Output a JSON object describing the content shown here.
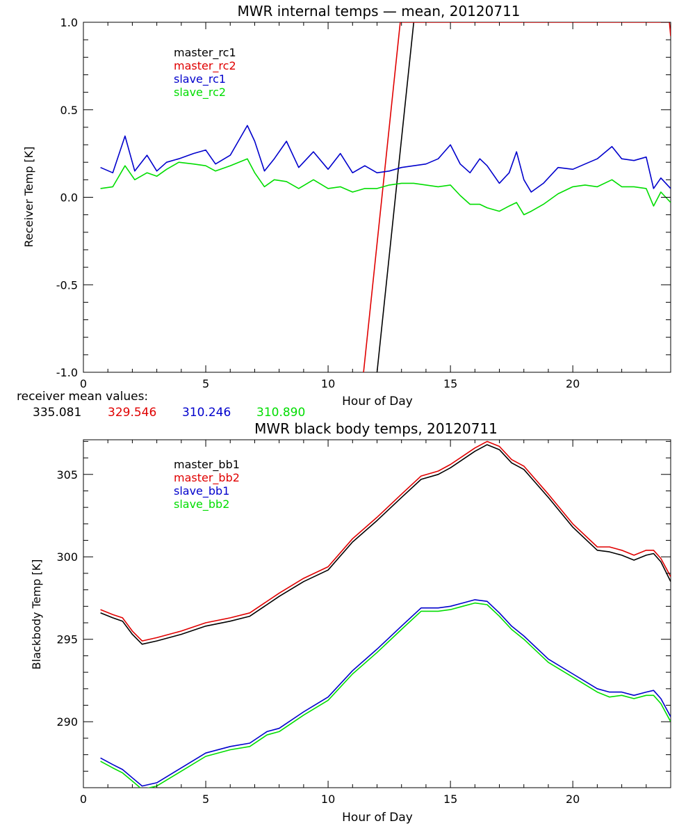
{
  "chart_data": [
    {
      "type": "line",
      "title": "MWR internal temps — mean, 20120711",
      "xlabel": "Hour of Day",
      "ylabel": "Receiver Temp [K]",
      "xlim": [
        0,
        24
      ],
      "ylim": [
        -1.0,
        1.0
      ],
      "xticks": [
        0,
        5,
        10,
        15,
        20
      ],
      "yticks": [
        -1.0,
        -0.5,
        0.0,
        0.5,
        1.0
      ],
      "ytick_labels": [
        "-1.0",
        "-0.5",
        "0.0",
        "0.5",
        "1.0"
      ],
      "grid": false,
      "legend_position": "top-left",
      "series": [
        {
          "name": "master_rc1",
          "color": "#000000",
          "x": [
            12.0,
            13.5
          ],
          "y": [
            -1.0,
            1.0
          ]
        },
        {
          "name": "master_rc2",
          "color": "#e00000",
          "x": [
            11.45,
            12.95,
            23.95,
            24.0
          ],
          "y": [
            -1.0,
            1.0,
            1.0,
            0.92
          ]
        },
        {
          "name": "slave_rc1",
          "color": "#0000cc",
          "x": [
            0.7,
            1.2,
            1.7,
            2.1,
            2.6,
            3.0,
            3.4,
            3.9,
            4.5,
            5.0,
            5.4,
            6.0,
            6.7,
            7.0,
            7.4,
            7.8,
            8.3,
            8.8,
            9.4,
            10.0,
            10.5,
            11.0,
            11.5,
            12.0,
            12.5,
            13.0,
            13.5,
            14.0,
            14.5,
            15.0,
            15.4,
            15.8,
            16.2,
            16.5,
            17.0,
            17.4,
            17.7,
            18.0,
            18.3,
            18.8,
            19.4,
            20.0,
            20.5,
            21.0,
            21.6,
            22.0,
            22.5,
            23.0,
            23.3,
            23.6,
            24.0
          ],
          "y": [
            0.17,
            0.14,
            0.35,
            0.15,
            0.24,
            0.15,
            0.2,
            0.22,
            0.25,
            0.27,
            0.19,
            0.24,
            0.41,
            0.32,
            0.15,
            0.22,
            0.32,
            0.17,
            0.26,
            0.16,
            0.25,
            0.14,
            0.18,
            0.14,
            0.15,
            0.17,
            0.18,
            0.19,
            0.22,
            0.3,
            0.19,
            0.14,
            0.22,
            0.18,
            0.08,
            0.14,
            0.26,
            0.1,
            0.03,
            0.08,
            0.17,
            0.16,
            0.19,
            0.22,
            0.29,
            0.22,
            0.21,
            0.23,
            0.05,
            0.11,
            0.05
          ]
        },
        {
          "name": "slave_rc2",
          "color": "#00dd00",
          "x": [
            0.7,
            1.2,
            1.7,
            2.1,
            2.6,
            3.0,
            3.4,
            3.9,
            4.5,
            5.0,
            5.4,
            6.0,
            6.7,
            7.0,
            7.4,
            7.8,
            8.3,
            8.8,
            9.4,
            10.0,
            10.5,
            11.0,
            11.5,
            12.0,
            12.5,
            13.0,
            13.5,
            14.0,
            14.5,
            15.0,
            15.4,
            15.8,
            16.2,
            16.5,
            17.0,
            17.4,
            17.7,
            18.0,
            18.3,
            18.8,
            19.4,
            20.0,
            20.5,
            21.0,
            21.6,
            22.0,
            22.5,
            23.0,
            23.3,
            23.6,
            24.0
          ],
          "y": [
            0.05,
            0.06,
            0.18,
            0.1,
            0.14,
            0.12,
            0.16,
            0.2,
            0.19,
            0.18,
            0.15,
            0.18,
            0.22,
            0.14,
            0.06,
            0.1,
            0.09,
            0.05,
            0.1,
            0.05,
            0.06,
            0.03,
            0.05,
            0.05,
            0.07,
            0.08,
            0.08,
            0.07,
            0.06,
            0.07,
            0.01,
            -0.04,
            -0.04,
            -0.06,
            -0.08,
            -0.05,
            -0.03,
            -0.1,
            -0.08,
            -0.04,
            0.02,
            0.06,
            0.07,
            0.06,
            0.1,
            0.06,
            0.06,
            0.05,
            -0.05,
            0.03,
            -0.03
          ]
        }
      ],
      "annotation": {
        "label": "receiver mean values:",
        "values": [
          {
            "text": "335.081",
            "color": "#000000"
          },
          {
            "text": "329.546",
            "color": "#e00000"
          },
          {
            "text": "310.246",
            "color": "#0000cc"
          },
          {
            "text": "310.890",
            "color": "#00dd00"
          }
        ]
      }
    },
    {
      "type": "line",
      "title": "MWR black body temps, 20120711",
      "xlabel": "Hour of Day",
      "ylabel": "Blackbody Temp [K]",
      "xlim": [
        0,
        24
      ],
      "ylim": [
        286,
        307.1
      ],
      "xticks": [
        0,
        5,
        10,
        15,
        20
      ],
      "yticks": [
        290,
        295,
        300,
        305
      ],
      "ytick_labels": [
        "290",
        "295",
        "300",
        "305"
      ],
      "grid": false,
      "legend_position": "top-left",
      "series": [
        {
          "name": "master_bb1",
          "color": "#000000",
          "x": [
            0.7,
            1.2,
            1.6,
            2.0,
            2.4,
            3.0,
            4.0,
            5.0,
            6.0,
            6.8,
            8.0,
            9.0,
            10.0,
            11.0,
            12.0,
            13.0,
            13.8,
            14.5,
            15.0,
            15.5,
            16.0,
            16.5,
            17.0,
            17.5,
            18.0,
            19.0,
            20.0,
            21.0,
            21.5,
            22.0,
            22.5,
            23.0,
            23.3,
            23.6,
            24.0
          ],
          "y": [
            296.6,
            296.3,
            296.1,
            295.3,
            294.7,
            294.9,
            295.3,
            295.8,
            296.1,
            296.4,
            297.6,
            298.5,
            299.2,
            300.9,
            302.2,
            303.6,
            304.7,
            305.0,
            305.4,
            305.9,
            306.4,
            306.8,
            306.5,
            305.7,
            305.3,
            303.6,
            301.8,
            300.4,
            300.3,
            300.1,
            299.8,
            300.1,
            300.2,
            299.7,
            298.5
          ]
        },
        {
          "name": "master_bb2",
          "color": "#e00000",
          "x": [
            0.7,
            1.2,
            1.6,
            2.0,
            2.4,
            3.0,
            4.0,
            5.0,
            6.0,
            6.8,
            8.0,
            9.0,
            10.0,
            11.0,
            12.0,
            13.0,
            13.8,
            14.5,
            15.0,
            15.5,
            16.0,
            16.5,
            17.0,
            17.5,
            18.0,
            19.0,
            20.0,
            21.0,
            21.5,
            22.0,
            22.5,
            23.0,
            23.3,
            23.6,
            24.0
          ],
          "y": [
            296.8,
            296.5,
            296.3,
            295.5,
            294.9,
            295.1,
            295.5,
            296.0,
            296.3,
            296.6,
            297.8,
            298.7,
            299.4,
            301.1,
            302.4,
            303.8,
            304.9,
            305.2,
            305.6,
            306.1,
            306.6,
            307.0,
            306.7,
            305.9,
            305.5,
            303.8,
            302.0,
            300.6,
            300.6,
            300.4,
            300.1,
            300.4,
            300.4,
            299.9,
            298.8
          ]
        },
        {
          "name": "slave_bb1",
          "color": "#0000cc",
          "x": [
            0.7,
            1.2,
            1.6,
            2.0,
            2.4,
            3.0,
            4.0,
            5.0,
            6.0,
            6.8,
            7.5,
            8.0,
            9.0,
            10.0,
            11.0,
            12.0,
            13.0,
            13.8,
            14.5,
            15.0,
            15.5,
            16.0,
            16.5,
            17.0,
            17.5,
            18.0,
            19.0,
            20.0,
            21.0,
            21.5,
            22.0,
            22.5,
            23.0,
            23.3,
            23.6,
            24.0
          ],
          "y": [
            287.8,
            287.4,
            287.1,
            286.6,
            286.1,
            286.3,
            287.2,
            288.1,
            288.5,
            288.7,
            289.4,
            289.6,
            290.6,
            291.5,
            293.1,
            294.4,
            295.8,
            296.9,
            296.9,
            297.0,
            297.2,
            297.4,
            297.3,
            296.6,
            295.8,
            295.2,
            293.8,
            292.9,
            292.0,
            291.8,
            291.8,
            291.6,
            291.8,
            291.9,
            291.4,
            290.3
          ]
        },
        {
          "name": "slave_bb2",
          "color": "#00dd00",
          "x": [
            0.7,
            1.2,
            1.6,
            2.0,
            2.4,
            3.0,
            4.0,
            5.0,
            6.0,
            6.8,
            7.5,
            8.0,
            9.0,
            10.0,
            11.0,
            12.0,
            13.0,
            13.8,
            14.5,
            15.0,
            15.5,
            16.0,
            16.5,
            17.0,
            17.5,
            18.0,
            19.0,
            20.0,
            21.0,
            21.5,
            22.0,
            22.5,
            23.0,
            23.3,
            23.6,
            24.0
          ],
          "y": [
            287.6,
            287.2,
            286.9,
            286.4,
            285.9,
            286.1,
            287.0,
            287.9,
            288.3,
            288.5,
            289.2,
            289.4,
            290.4,
            291.3,
            292.9,
            294.2,
            295.6,
            296.7,
            296.7,
            296.8,
            297.0,
            297.2,
            297.1,
            296.4,
            295.6,
            295.0,
            293.6,
            292.7,
            291.8,
            291.5,
            291.6,
            291.4,
            291.6,
            291.6,
            291.1,
            290.0
          ]
        }
      ]
    }
  ]
}
